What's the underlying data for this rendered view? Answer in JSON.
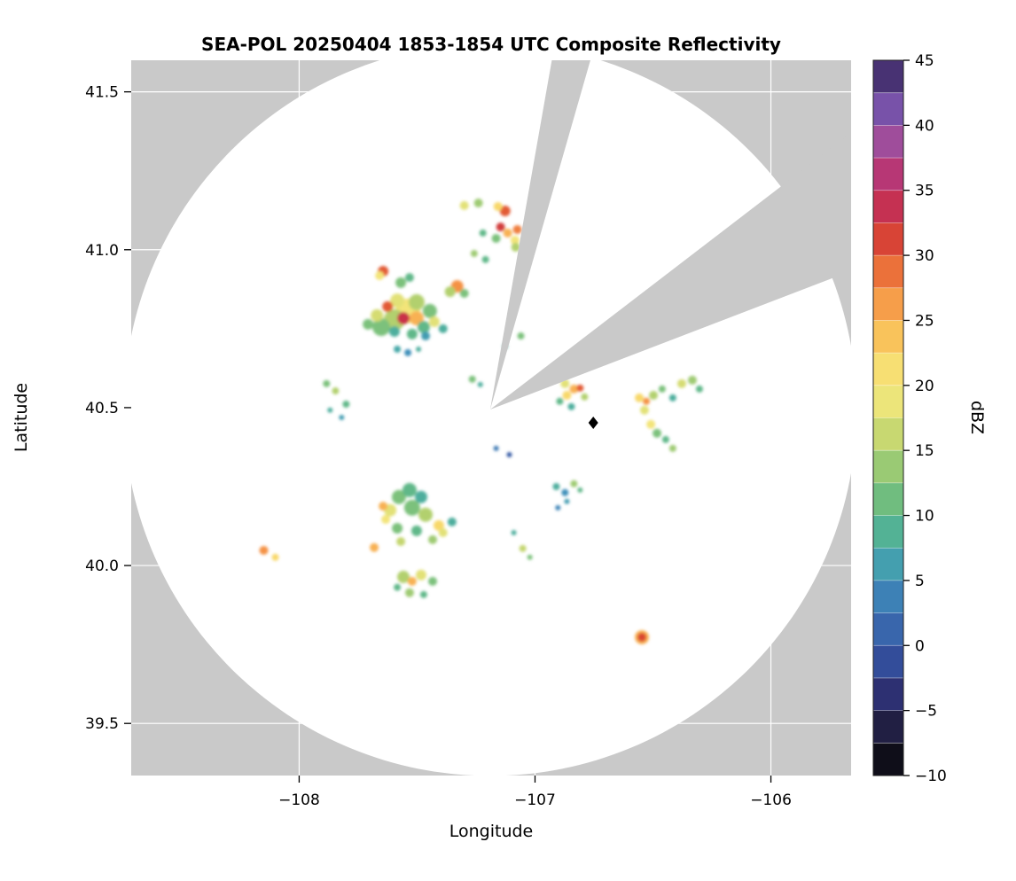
{
  "chart_data": {
    "type": "heatmap",
    "title": "SEA-POL 20250404 1853-1854 UTC Composite Reflectivity",
    "xlabel": "Longitude",
    "ylabel": "Latitude",
    "xlim": [
      -108.712,
      -105.66
    ],
    "ylim": [
      39.335,
      41.6
    ],
    "x_tick_values": [
      -108,
      -107,
      -106
    ],
    "x_tick_labels": [
      "−108",
      "−107",
      "−106"
    ],
    "y_tick_values": [
      39.5,
      40.0,
      40.5,
      41.0,
      41.5
    ],
    "y_tick_labels": [
      "39.5",
      "40.0",
      "40.5",
      "41.0",
      "41.5"
    ],
    "grid": true,
    "colors": {
      "no_data_background": "#c9c9c9",
      "coverage_area": "#ffffff",
      "gridline": "#ffffff",
      "marker": "#000000"
    },
    "colorbar": {
      "label": "dBZ",
      "min": -10,
      "max": 45,
      "segment_step": 2.5,
      "tick_values": [
        45,
        40,
        35,
        30,
        25,
        20,
        15,
        10,
        5,
        0,
        -5,
        -10
      ],
      "tick_labels": [
        "45",
        "40",
        "35",
        "30",
        "25",
        "20",
        "15",
        "10",
        "5",
        "0",
        "−5",
        "−10"
      ],
      "stops": [
        [
          -10,
          "#050505"
        ],
        [
          -7,
          "#1d1a35"
        ],
        [
          -4,
          "#2c2d6e"
        ],
        [
          -1,
          "#34509e"
        ],
        [
          2,
          "#3a6db0"
        ],
        [
          5,
          "#3f90ba"
        ],
        [
          7,
          "#47a8a8"
        ],
        [
          9,
          "#55b392"
        ],
        [
          11,
          "#6cbc80"
        ],
        [
          13,
          "#8cc677"
        ],
        [
          15,
          "#b2d06e"
        ],
        [
          17,
          "#d5dc72"
        ],
        [
          19,
          "#efe67b"
        ],
        [
          21,
          "#f7e176"
        ],
        [
          23,
          "#f9ce60"
        ],
        [
          25,
          "#f8b153"
        ],
        [
          27,
          "#f49245"
        ],
        [
          29,
          "#ea6c38"
        ],
        [
          31,
          "#da4733"
        ],
        [
          33,
          "#c93248"
        ],
        [
          35,
          "#bf2f62"
        ],
        [
          37,
          "#b23b80"
        ],
        [
          39,
          "#9c4f9f"
        ],
        [
          41,
          "#7d55ad"
        ],
        [
          43,
          "#58408f"
        ],
        [
          45,
          "#2d1a45"
        ]
      ]
    },
    "radar": {
      "center_lon": -107.19,
      "center_lat": 40.494,
      "range_km": 129,
      "blocked_sectors_deg": [
        [
          74,
          80
        ],
        [
          21,
          37.5
        ]
      ],
      "marker": {
        "lon": -106.753,
        "lat": 40.452,
        "shape": "diamond"
      }
    },
    "echoes": [
      [
        -107.652,
        40.755,
        12,
        10
      ],
      [
        -107.596,
        40.778,
        15,
        12
      ],
      [
        -107.539,
        40.806,
        20,
        14
      ],
      [
        -107.558,
        40.783,
        33,
        7
      ],
      [
        -107.502,
        40.783,
        25,
        8
      ],
      [
        -107.625,
        40.82,
        30,
        6
      ],
      [
        -107.584,
        40.839,
        18,
        8
      ],
      [
        -107.502,
        40.834,
        15,
        9
      ],
      [
        -107.446,
        40.806,
        12,
        8
      ],
      [
        -107.472,
        40.755,
        10,
        7
      ],
      [
        -107.427,
        40.772,
        18,
        6
      ],
      [
        -107.67,
        40.792,
        17,
        7
      ],
      [
        -107.708,
        40.764,
        12,
        6
      ],
      [
        -107.596,
        40.741,
        8,
        6
      ],
      [
        -107.521,
        40.733,
        10,
        6
      ],
      [
        -107.464,
        40.727,
        6,
        5
      ],
      [
        -107.39,
        40.75,
        8,
        5
      ],
      [
        -107.644,
        40.932,
        30,
        6
      ],
      [
        -107.659,
        40.918,
        20,
        5
      ],
      [
        -107.569,
        40.896,
        12,
        6
      ],
      [
        -107.532,
        40.912,
        10,
        5
      ],
      [
        -107.33,
        40.884,
        27,
        7
      ],
      [
        -107.36,
        40.867,
        15,
        6
      ],
      [
        -107.3,
        40.862,
        12,
        5
      ],
      [
        -107.3,
        41.14,
        18,
        5
      ],
      [
        -107.24,
        41.148,
        14,
        5
      ],
      [
        -107.127,
        41.123,
        30,
        6
      ],
      [
        -107.157,
        41.137,
        22,
        5
      ],
      [
        -107.146,
        41.072,
        32,
        5
      ],
      [
        -107.116,
        41.053,
        25,
        5
      ],
      [
        -107.075,
        41.064,
        28,
        5
      ],
      [
        -107.085,
        41.03,
        20,
        5
      ],
      [
        -107.082,
        41.008,
        15,
        5
      ],
      [
        -107.165,
        41.036,
        12,
        5
      ],
      [
        -107.221,
        41.053,
        10,
        4
      ],
      [
        -107.258,
        40.988,
        14,
        4
      ],
      [
        -107.21,
        40.969,
        10,
        4
      ],
      [
        -107.266,
        40.59,
        12,
        4
      ],
      [
        -107.232,
        40.573,
        8,
        3
      ],
      [
        -107.06,
        40.727,
        12,
        4
      ],
      [
        -107.127,
        40.694,
        8,
        3
      ],
      [
        -107.884,
        40.576,
        12,
        4
      ],
      [
        -107.846,
        40.553,
        15,
        4
      ],
      [
        -107.801,
        40.511,
        10,
        4
      ],
      [
        -107.869,
        40.492,
        8,
        3
      ],
      [
        -107.82,
        40.469,
        6,
        3
      ],
      [
        -107.584,
        40.685,
        7,
        4
      ],
      [
        -107.539,
        40.674,
        5,
        4
      ],
      [
        -107.494,
        40.685,
        8,
        3
      ],
      [
        -107.614,
        40.175,
        18,
        7
      ],
      [
        -107.577,
        40.217,
        12,
        8
      ],
      [
        -107.532,
        40.239,
        10,
        8
      ],
      [
        -107.483,
        40.217,
        8,
        7
      ],
      [
        -107.521,
        40.183,
        12,
        9
      ],
      [
        -107.464,
        40.161,
        15,
        8
      ],
      [
        -107.408,
        40.127,
        22,
        6
      ],
      [
        -107.39,
        40.104,
        18,
        5
      ],
      [
        -107.644,
        40.188,
        25,
        5
      ],
      [
        -107.633,
        40.146,
        20,
        5
      ],
      [
        -107.584,
        40.118,
        12,
        6
      ],
      [
        -107.502,
        40.11,
        10,
        6
      ],
      [
        -107.434,
        40.082,
        14,
        5
      ],
      [
        -107.352,
        40.138,
        8,
        5
      ],
      [
        -107.569,
        40.076,
        16,
        5
      ],
      [
        -107.558,
        39.964,
        15,
        7
      ],
      [
        -107.521,
        39.95,
        25,
        5
      ],
      [
        -107.483,
        39.97,
        18,
        6
      ],
      [
        -107.434,
        39.95,
        12,
        5
      ],
      [
        -107.532,
        39.914,
        14,
        5
      ],
      [
        -107.472,
        39.908,
        10,
        4
      ],
      [
        -107.584,
        39.931,
        10,
        4
      ],
      [
        -108.15,
        40.048,
        27,
        5
      ],
      [
        -108.101,
        40.026,
        22,
        4
      ],
      [
        -107.682,
        40.057,
        25,
        5
      ],
      [
        -106.547,
        39.773,
        25,
        8
      ],
      [
        -106.547,
        39.773,
        31,
        5
      ],
      [
        -107.165,
        40.371,
        3,
        3
      ],
      [
        -107.109,
        40.351,
        0,
        3
      ],
      [
        -107.052,
        40.054,
        16,
        4
      ],
      [
        -107.022,
        40.026,
        12,
        3
      ],
      [
        -107.09,
        40.104,
        8,
        3
      ],
      [
        -106.873,
        40.576,
        18,
        5
      ],
      [
        -106.835,
        40.559,
        25,
        5
      ],
      [
        -106.809,
        40.562,
        30,
        4
      ],
      [
        -106.865,
        40.539,
        22,
        5
      ],
      [
        -106.895,
        40.52,
        10,
        4
      ],
      [
        -106.846,
        40.503,
        8,
        4
      ],
      [
        -106.79,
        40.534,
        15,
        4
      ],
      [
        -106.558,
        40.531,
        22,
        5
      ],
      [
        -106.528,
        40.52,
        27,
        4
      ],
      [
        -106.536,
        40.492,
        18,
        5
      ],
      [
        -106.498,
        40.539,
        15,
        5
      ],
      [
        -106.461,
        40.559,
        12,
        4
      ],
      [
        -106.378,
        40.576,
        17,
        5
      ],
      [
        -106.333,
        40.587,
        14,
        5
      ],
      [
        -106.303,
        40.559,
        10,
        4
      ],
      [
        -106.416,
        40.531,
        8,
        4
      ],
      [
        -106.509,
        40.447,
        20,
        5
      ],
      [
        -106.483,
        40.419,
        12,
        5
      ],
      [
        -106.446,
        40.399,
        10,
        4
      ],
      [
        -106.416,
        40.371,
        14,
        4
      ],
      [
        -106.91,
        40.25,
        8,
        4
      ],
      [
        -106.873,
        40.231,
        5,
        4
      ],
      [
        -106.835,
        40.259,
        14,
        4
      ],
      [
        -106.809,
        40.239,
        10,
        3
      ],
      [
        -106.865,
        40.203,
        6,
        3
      ],
      [
        -106.903,
        40.183,
        4,
        3
      ]
    ]
  }
}
